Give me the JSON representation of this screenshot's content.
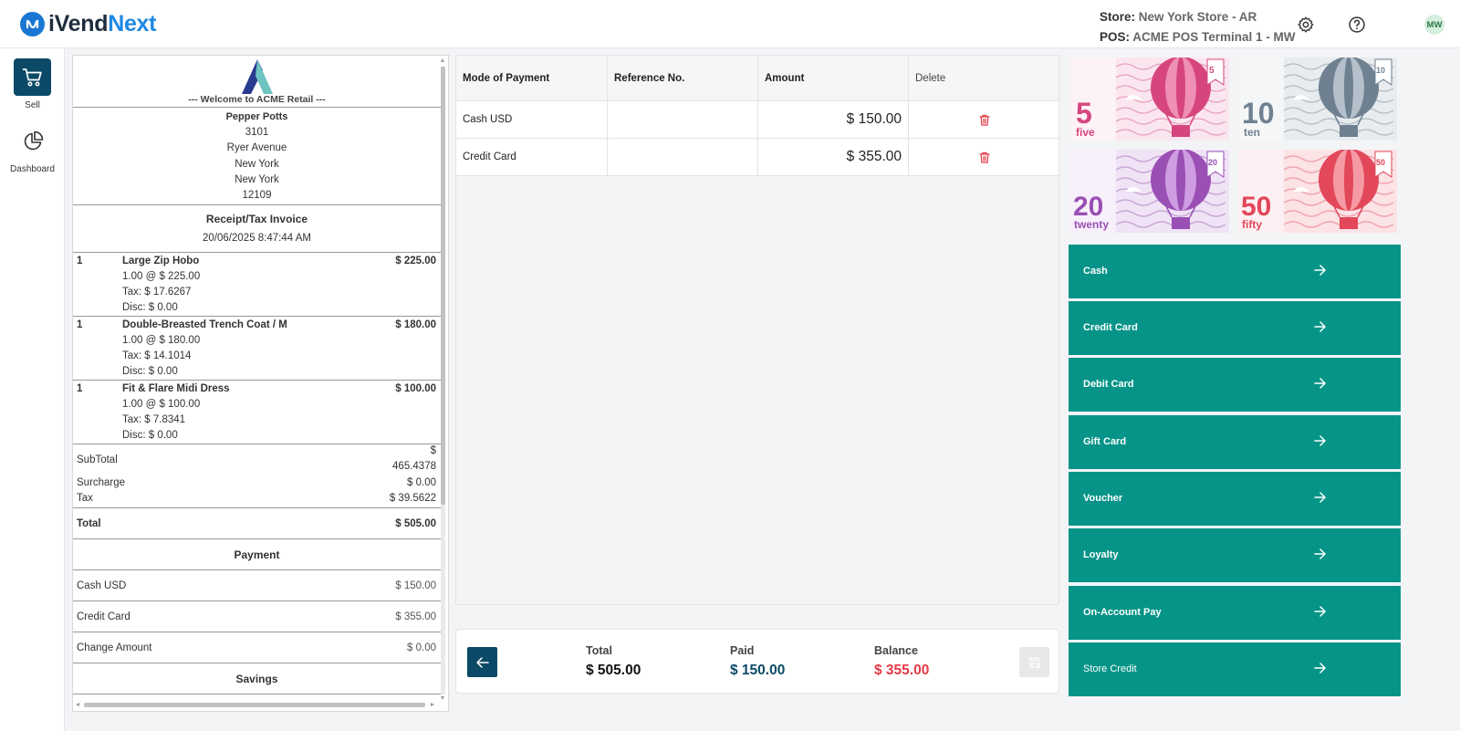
{
  "header": {
    "brand_part1": "iVend",
    "brand_part2": "Next",
    "store_label": "Store:",
    "store_value": "New York Store - AR",
    "pos_label": "POS:",
    "pos_value": "ACME POS Terminal 1 - MW",
    "user_initials": "MW"
  },
  "sidebar": {
    "items": [
      {
        "label": "Sell",
        "icon": "cart-icon",
        "active": true
      },
      {
        "label": "Dashboard",
        "icon": "pie-chart-icon",
        "active": false
      }
    ]
  },
  "receipt": {
    "welcome": "--- Welcome to ACME Retail ---",
    "customer": {
      "name": "Pepper Potts",
      "line1": "3101",
      "line2": "Ryer Avenue",
      "line3": "New York",
      "line4": "New York",
      "line5": "12109"
    },
    "title": "Receipt/Tax Invoice",
    "datetime": "20/06/2025 8:47:44 AM",
    "items": [
      {
        "qty": "1",
        "name": "Large Zip Hobo",
        "price": "$ 225.00",
        "line1": "1.00 @ $ 225.00",
        "line2": "Tax: $ 17.6267",
        "line3": "Disc: $ 0.00"
      },
      {
        "qty": "1",
        "name": "Double-Breasted Trench Coat / M",
        "price": "$ 180.00",
        "line1": "1.00 @ $ 180.00",
        "line2": "Tax: $ 14.1014",
        "line3": "Disc: $ 0.00"
      },
      {
        "qty": "1",
        "name": "Fit & Flare Midi Dress",
        "price": "$ 100.00",
        "line1": "1.00 @ $ 100.00",
        "line2": "Tax: $ 7.8341",
        "line3": "Disc: $ 0.00"
      }
    ],
    "subtotal_label": "SubTotal",
    "subtotal_currency": "$",
    "subtotal_value": "465.4378",
    "surcharge_label": "Surcharge",
    "surcharge_value": "$ 0.00",
    "tax_label": "Tax",
    "tax_value": "$ 39.5622",
    "total_label": "Total",
    "total_value": "$ 505.00",
    "payment_heading": "Payment",
    "payments": [
      {
        "label": "Cash USD",
        "value": "$ 150.00"
      },
      {
        "label": "Credit Card",
        "value": "$ 355.00"
      },
      {
        "label": "Change Amount",
        "value": "$ 0.00"
      }
    ],
    "savings_heading": "Savings"
  },
  "payment_table": {
    "headers": [
      "Mode of Payment",
      "Reference No.",
      "Amount",
      "Delete"
    ],
    "rows": [
      {
        "mode": "Cash USD",
        "reference": "",
        "amount": "$ 150.00"
      },
      {
        "mode": "Credit Card",
        "reference": "",
        "amount": "$ 355.00"
      }
    ]
  },
  "totals": {
    "total_label": "Total",
    "total_value": "$ 505.00",
    "paid_label": "Paid",
    "paid_value": "$ 150.00",
    "balance_label": "Balance",
    "balance_value": "$ 355.00"
  },
  "notes": [
    {
      "number": "5",
      "word": "five",
      "color": "#d6457e"
    },
    {
      "number": "10",
      "word": "ten",
      "color": "#6f8191"
    },
    {
      "number": "20",
      "word": "twenty",
      "color": "#9a4fb5"
    },
    {
      "number": "50",
      "word": "fifty",
      "color": "#e2475a"
    }
  ],
  "payment_methods": [
    "Cash",
    "Credit Card",
    "Debit Card",
    "Gift Card",
    "Voucher",
    "Loyalty",
    "On-Account Pay",
    "Store Credit"
  ],
  "colors": {
    "accent_teal": "#079488",
    "primary_navy": "#0b4a66",
    "balance_red": "#e53945",
    "paid_blue": "#0b4a66"
  }
}
